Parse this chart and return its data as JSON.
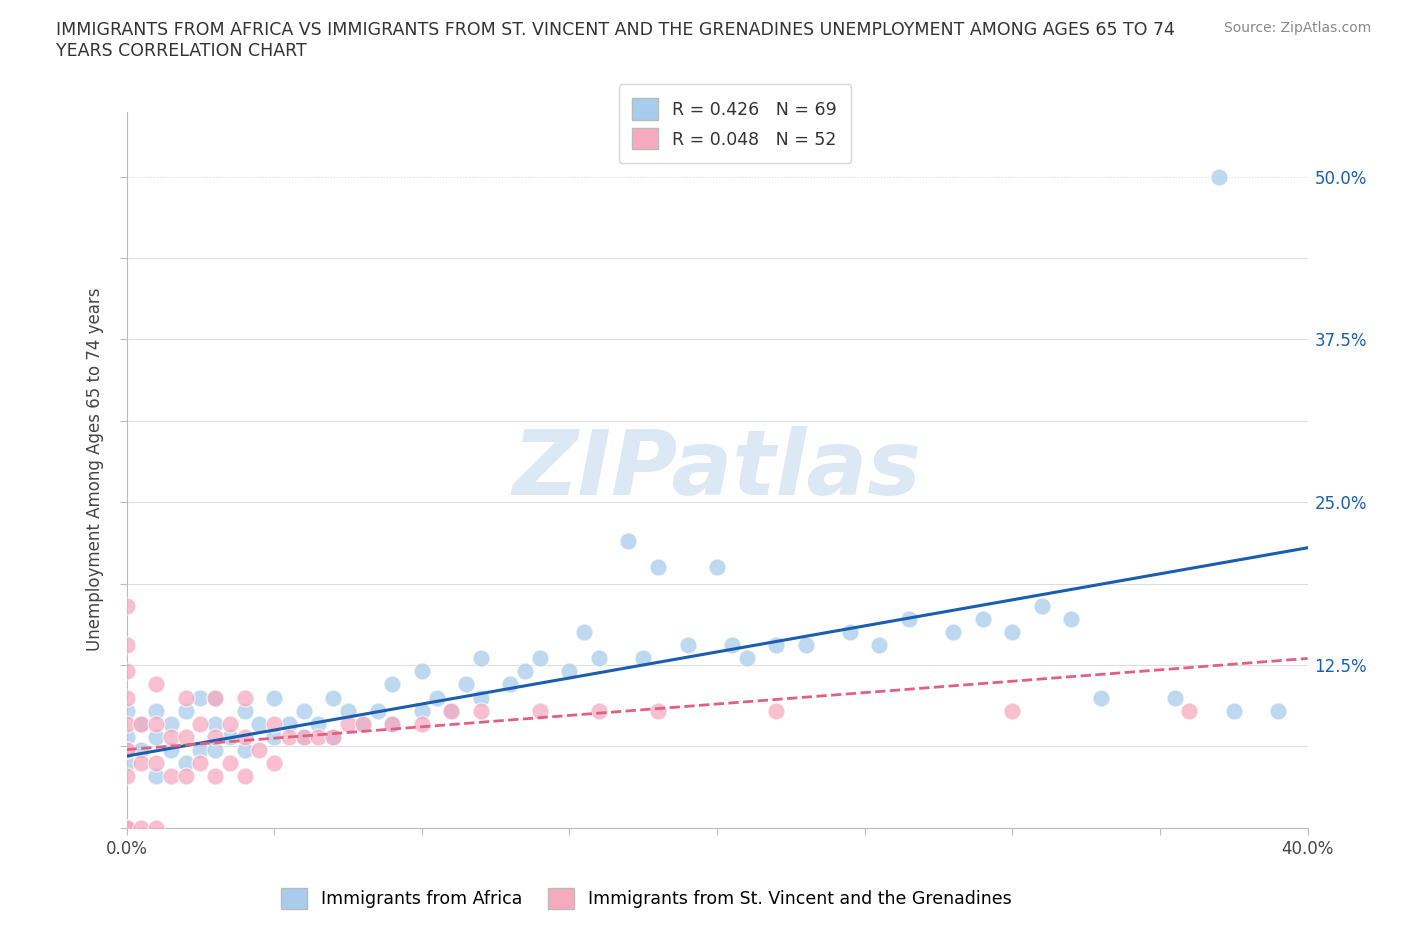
{
  "title_line1": "IMMIGRANTS FROM AFRICA VS IMMIGRANTS FROM ST. VINCENT AND THE GRENADINES UNEMPLOYMENT AMONG AGES 65 TO 74",
  "title_line2": "YEARS CORRELATION CHART",
  "source": "Source: ZipAtlas.com",
  "ylabel": "Unemployment Among Ages 65 to 74 years",
  "xlim": [
    0.0,
    0.4
  ],
  "ylim": [
    0.0,
    0.55
  ],
  "xtick_positions": [
    0.0,
    0.05,
    0.1,
    0.15,
    0.2,
    0.25,
    0.3,
    0.35,
    0.4
  ],
  "xtick_labels": [
    "0.0%",
    "",
    "",
    "",
    "",
    "",
    "",
    "",
    "40.0%"
  ],
  "ytick_positions": [
    0.0,
    0.0625,
    0.125,
    0.1875,
    0.25,
    0.3125,
    0.375,
    0.4375,
    0.5
  ],
  "ytick_labels_right": [
    "",
    "",
    "12.5%",
    "",
    "25.0%",
    "",
    "37.5%",
    "",
    "50.0%"
  ],
  "blue_fill_color": "#A8CCEC",
  "pink_fill_color": "#F5AABF",
  "blue_line_color": "#1B5DAE",
  "pink_line_color": "#E06080",
  "R_blue": 0.426,
  "N_blue": 69,
  "R_pink": 0.048,
  "N_pink": 52,
  "legend_label_blue": "Immigrants from Africa",
  "legend_label_pink": "Immigrants from St. Vincent and the Grenadines",
  "watermark_text": "ZIPatlas",
  "watermark_color": "#DCE9F5",
  "grid_color": "#DDDDDD",
  "title_fontsize": 12.5,
  "axis_label_fontsize": 12,
  "tick_fontsize": 12,
  "legend_fontsize": 12.5,
  "blue_x": [
    0.0,
    0.0,
    0.0,
    0.005,
    0.005,
    0.01,
    0.01,
    0.01,
    0.015,
    0.015,
    0.02,
    0.02,
    0.025,
    0.025,
    0.03,
    0.03,
    0.03,
    0.035,
    0.04,
    0.04,
    0.045,
    0.05,
    0.05,
    0.055,
    0.06,
    0.06,
    0.065,
    0.07,
    0.07,
    0.075,
    0.08,
    0.085,
    0.09,
    0.09,
    0.1,
    0.1,
    0.105,
    0.11,
    0.115,
    0.12,
    0.12,
    0.13,
    0.135,
    0.14,
    0.15,
    0.155,
    0.16,
    0.17,
    0.175,
    0.18,
    0.19,
    0.2,
    0.205,
    0.21,
    0.22,
    0.23,
    0.245,
    0.255,
    0.265,
    0.28,
    0.29,
    0.3,
    0.31,
    0.32,
    0.33,
    0.355,
    0.37,
    0.375,
    0.39
  ],
  "blue_y": [
    0.05,
    0.07,
    0.09,
    0.06,
    0.08,
    0.04,
    0.07,
    0.09,
    0.06,
    0.08,
    0.05,
    0.09,
    0.06,
    0.1,
    0.06,
    0.08,
    0.1,
    0.07,
    0.06,
    0.09,
    0.08,
    0.07,
    0.1,
    0.08,
    0.07,
    0.09,
    0.08,
    0.07,
    0.1,
    0.09,
    0.08,
    0.09,
    0.08,
    0.11,
    0.09,
    0.12,
    0.1,
    0.09,
    0.11,
    0.1,
    0.13,
    0.11,
    0.12,
    0.13,
    0.12,
    0.15,
    0.13,
    0.22,
    0.13,
    0.2,
    0.14,
    0.2,
    0.14,
    0.13,
    0.14,
    0.14,
    0.15,
    0.14,
    0.16,
    0.15,
    0.16,
    0.15,
    0.17,
    0.16,
    0.1,
    0.1,
    0.5,
    0.09,
    0.09
  ],
  "pink_x": [
    0.0,
    0.0,
    0.0,
    0.0,
    0.0,
    0.0,
    0.0,
    0.0,
    0.0,
    0.0,
    0.0,
    0.005,
    0.005,
    0.005,
    0.01,
    0.01,
    0.01,
    0.01,
    0.015,
    0.015,
    0.02,
    0.02,
    0.02,
    0.025,
    0.025,
    0.03,
    0.03,
    0.03,
    0.035,
    0.035,
    0.04,
    0.04,
    0.04,
    0.045,
    0.05,
    0.05,
    0.055,
    0.06,
    0.065,
    0.07,
    0.075,
    0.08,
    0.09,
    0.1,
    0.11,
    0.12,
    0.14,
    0.16,
    0.18,
    0.22,
    0.3,
    0.36
  ],
  "pink_y": [
    0.0,
    0.0,
    0.0,
    0.04,
    0.06,
    0.08,
    0.1,
    0.12,
    0.14,
    0.17,
    0.06,
    0.0,
    0.05,
    0.08,
    0.0,
    0.05,
    0.08,
    0.11,
    0.04,
    0.07,
    0.04,
    0.07,
    0.1,
    0.05,
    0.08,
    0.04,
    0.07,
    0.1,
    0.05,
    0.08,
    0.04,
    0.07,
    0.1,
    0.06,
    0.05,
    0.08,
    0.07,
    0.07,
    0.07,
    0.07,
    0.08,
    0.08,
    0.08,
    0.08,
    0.09,
    0.09,
    0.09,
    0.09,
    0.09,
    0.09,
    0.09,
    0.09
  ],
  "blue_trend_x0": 0.0,
  "blue_trend_y0": 0.055,
  "blue_trend_x1": 0.4,
  "blue_trend_y1": 0.215,
  "pink_trend_x0": 0.0,
  "pink_trend_y0": 0.06,
  "pink_trend_x1": 0.4,
  "pink_trend_y1": 0.13
}
